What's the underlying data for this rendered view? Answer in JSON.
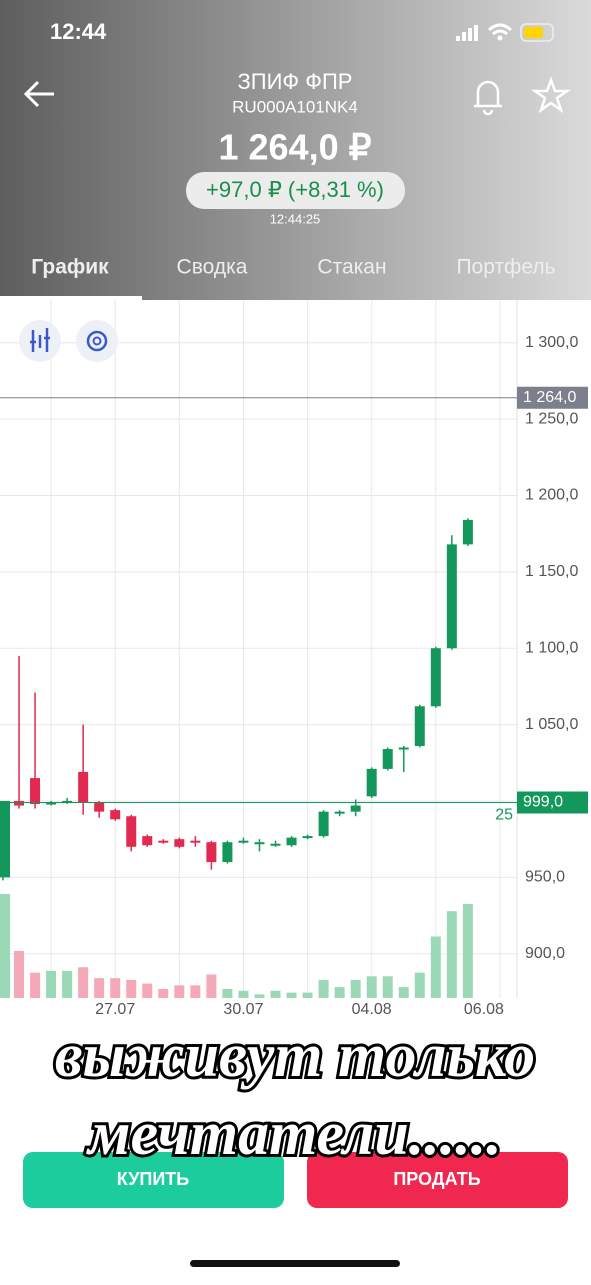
{
  "status_bar": {
    "time": "12:44"
  },
  "header": {
    "title": "ЗПИФ ФПР",
    "ticker": "RU000A101NK4",
    "price": "1 264,0 ₽",
    "change": "+97,0 ₽ (+8,31 %)",
    "updated": "12:44:25"
  },
  "tabs": [
    "График",
    "Сводка",
    "Стакан",
    "Портфель"
  ],
  "chart_data": {
    "type": "candlestick",
    "categories": [
      null,
      null,
      null,
      null,
      null,
      null,
      null,
      "27.07",
      null,
      null,
      null,
      null,
      null,
      null,
      null,
      "30.07",
      null,
      null,
      null,
      null,
      null,
      null,
      null,
      "04.08",
      null,
      null,
      null,
      null,
      null,
      null,
      "06.08"
    ],
    "open": [
      950,
      1000,
      1015,
      998,
      999,
      1019,
      999,
      994,
      990,
      977,
      974,
      975,
      974,
      973,
      960,
      974,
      972,
      972,
      971,
      976,
      977,
      992,
      993,
      1003,
      1021,
      1034,
      1036,
      1062,
      1100,
      1168,
      null
    ],
    "high": [
      1000,
      1095,
      1071,
      1000,
      1002,
      1050,
      1000,
      995,
      991,
      978,
      975,
      976,
      977,
      974,
      974,
      976,
      975,
      974,
      977,
      978,
      994,
      994,
      1001,
      1022,
      1035,
      1036,
      1063,
      1101,
      1174,
      1185,
      null
    ],
    "low": [
      948,
      995,
      995,
      997,
      998,
      991,
      989,
      987,
      967,
      970,
      972,
      969,
      970,
      955,
      959,
      972,
      967,
      970,
      970,
      975,
      976,
      990,
      990,
      1002,
      1020,
      1019,
      1035,
      1061,
      1099,
      1167,
      null
    ],
    "close": [
      1000,
      997,
      998,
      999,
      1000,
      999,
      993,
      988,
      970,
      971,
      973,
      970,
      973,
      960,
      973,
      974,
      973,
      972,
      976,
      977,
      993,
      993,
      997,
      1021,
      1034,
      1035,
      1062,
      1100,
      1168,
      1184,
      null
    ],
    "volume": [
      115,
      52,
      28,
      30,
      30,
      34,
      22,
      22,
      20,
      16,
      10,
      14,
      14,
      26,
      10,
      8,
      4,
      8,
      6,
      6,
      20,
      12,
      20,
      24,
      24,
      12,
      28,
      68,
      96,
      104,
      null
    ],
    "up_color": "#14975a",
    "down_color": "#e2294f",
    "volume_up_color": "#9ad8b6",
    "volume_down_color": "#f4a9b8",
    "ylim": [
      871,
      1328
    ],
    "yticks": [
      {
        "value": 900,
        "label": "900,0"
      },
      {
        "value": 950,
        "label": "950,0"
      },
      {
        "value": 1000,
        "label": ""
      },
      {
        "value": 1050,
        "label": "1 050,0"
      },
      {
        "value": 1100,
        "label": "1 100,0"
      },
      {
        "value": 1150,
        "label": "1 150,0"
      },
      {
        "value": 1200,
        "label": "1 200,0"
      },
      {
        "value": 1250,
        "label": "1 250,0"
      },
      {
        "value": 1300,
        "label": "1 300,0"
      }
    ],
    "grid": true,
    "price_lines": [
      {
        "value": 1264,
        "label": "1 264,0",
        "color": "#7c7f8c"
      },
      {
        "value": 999,
        "label": "999,0",
        "color": "#14975a",
        "note": "25"
      }
    ]
  },
  "buttons": {
    "buy": "КУПИТЬ",
    "sell": "ПРОДАТЬ"
  },
  "overlay": {
    "line1": "выживут только",
    "line2": "мечтатели......"
  }
}
